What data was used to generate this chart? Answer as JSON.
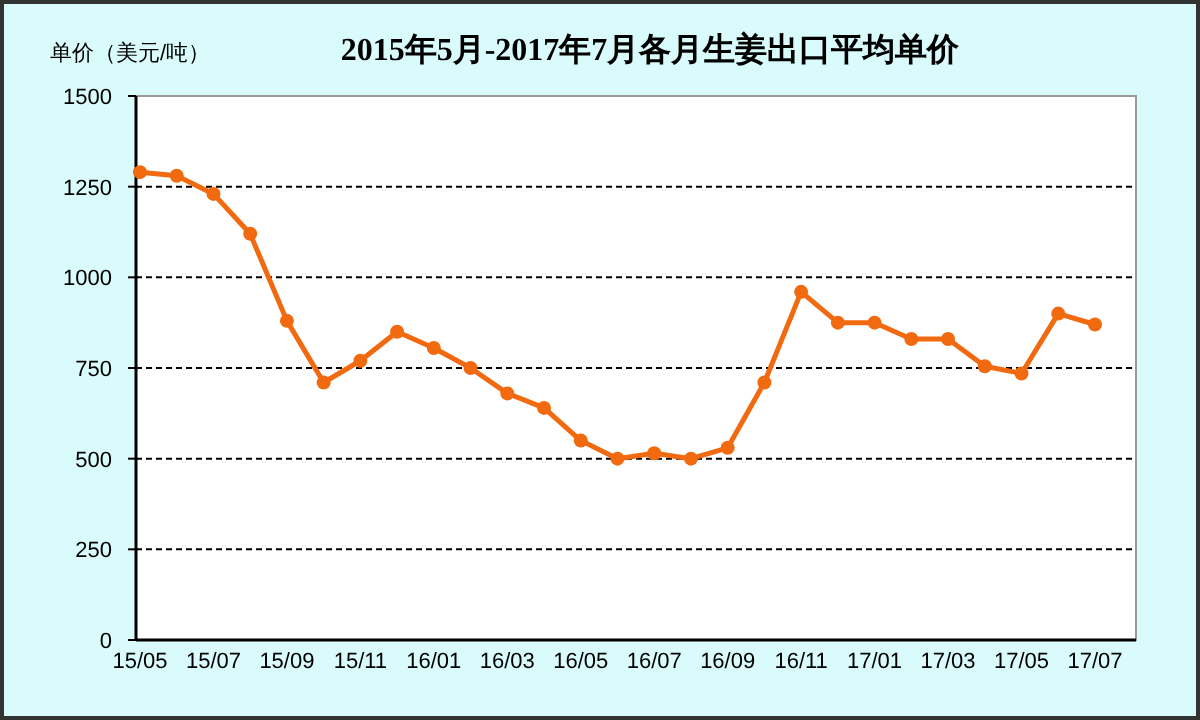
{
  "chart_data": {
    "type": "line",
    "title": "2015年5月-2017年7月各月生姜出口平均单价",
    "ylabel": "单价（美元/吨）",
    "categories": [
      "15/05",
      null,
      "15/07",
      null,
      "15/09",
      null,
      "15/11",
      null,
      "16/01",
      null,
      "16/03",
      null,
      "16/05",
      null,
      "16/07",
      null,
      "16/09",
      null,
      "16/11",
      null,
      "17/01",
      null,
      "17/03",
      null,
      "17/05",
      null,
      "17/07"
    ],
    "series": [
      {
        "color": "#f26a10",
        "values": [
          1290,
          1280,
          1230,
          1120,
          880,
          710,
          770,
          850,
          805,
          750,
          680,
          640,
          550,
          500,
          515,
          500,
          530,
          710,
          960,
          875,
          875,
          830,
          830,
          755,
          735,
          900,
          870
        ]
      }
    ],
    "ylim": [
      0,
      1500
    ],
    "yticks": [
      0,
      250,
      500,
      750,
      1000,
      1250,
      1500
    ],
    "grid": "y",
    "marker": "circle",
    "line_style": "solid"
  }
}
